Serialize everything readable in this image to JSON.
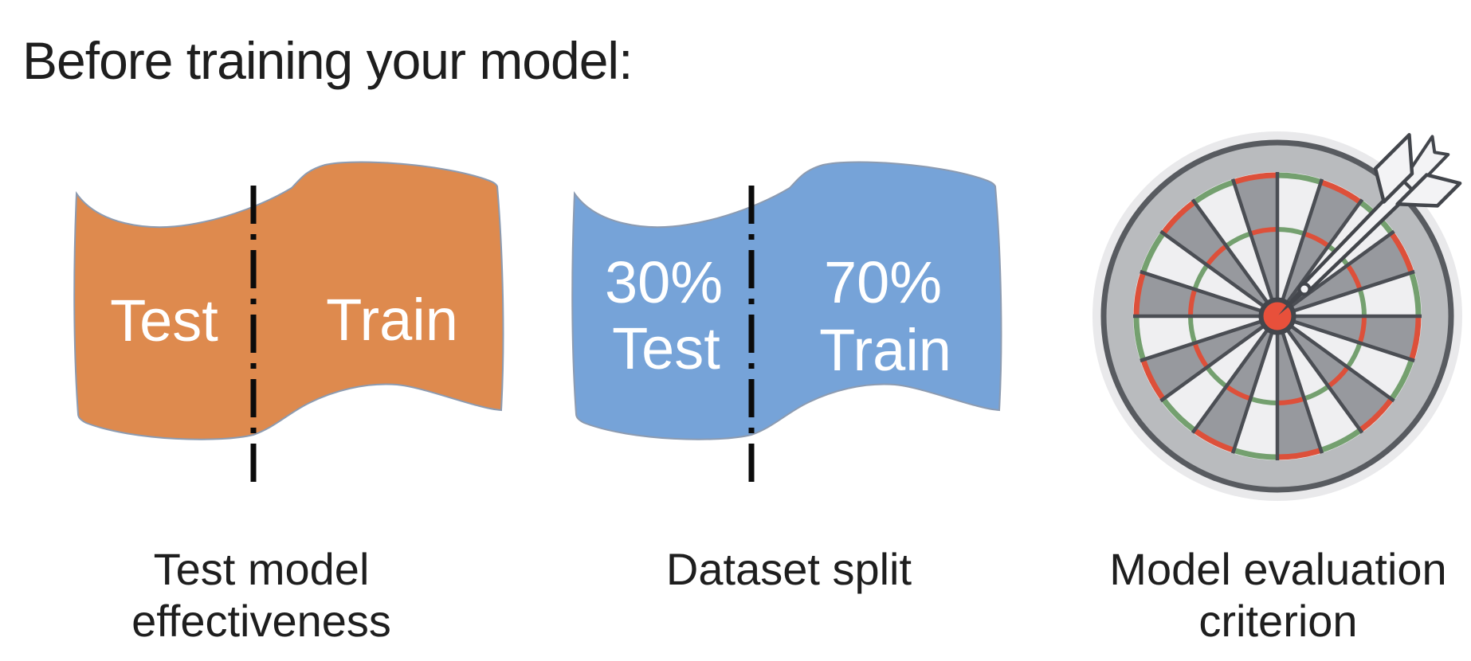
{
  "slide": {
    "title": "Before training your model:",
    "background_color": "#ffffff",
    "text_color": "#1e1e1e"
  },
  "figures": {
    "test_train": {
      "banner_color": "#DE8A4E",
      "banner_outline": "#8C9BB1",
      "divider_color": "#0b0b0b",
      "label_color": "#ffffff",
      "left_label": "Test",
      "right_label": "Train",
      "caption_line1": "Test model",
      "caption_line2": "effectiveness"
    },
    "dataset_split": {
      "banner_color": "#76A3D8",
      "banner_outline": "#8C9BB1",
      "divider_color": "#0b0b0b",
      "label_color": "#ffffff",
      "left_label_line1": "30%",
      "left_label_line2": "Test",
      "right_label_line1": "70%",
      "right_label_line2": "Train",
      "caption_line1": "Dataset split",
      "caption_line2": ""
    },
    "dartboard": {
      "caption_line1": "Model evaluation",
      "caption_line2": "criterion",
      "colors": {
        "halo": "#E9E9EB",
        "rim": "#B9BBBE",
        "outline": "#585B60",
        "field": "#EFEFF1",
        "wedge": "#97999E",
        "spoke": "#4B4E54",
        "red": "#DD503A",
        "green": "#74A06F",
        "bull": "#E8503B",
        "dart_fill": "#F3F3F5",
        "dart_outline": "#43464C"
      }
    }
  }
}
